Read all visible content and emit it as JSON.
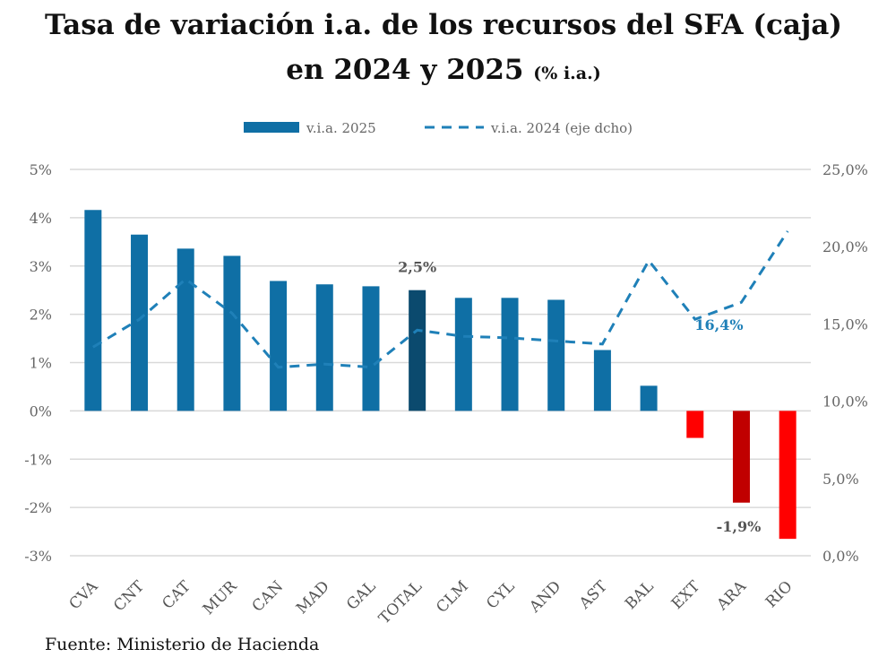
{
  "chart_data": {
    "type": "bar+line",
    "title": "Tasa de variación i.a. de los recursos del SFA (caja)",
    "title_line2": "en 2024 y 2025",
    "subtitle": "(% i.a.)",
    "categories": [
      "CVA",
      "CNT",
      "CAT",
      "MUR",
      "CAN",
      "MAD",
      "GAL",
      "TOTAL",
      "CLM",
      "CYL",
      "AND",
      "AST",
      "BAL",
      "EXT",
      "ARA",
      "RIO"
    ],
    "series": [
      {
        "name": "v.i.a. 2025",
        "type": "bar",
        "axis": "left",
        "values": [
          4.16,
          3.65,
          3.36,
          3.21,
          2.69,
          2.62,
          2.58,
          2.5,
          2.34,
          2.34,
          2.3,
          1.26,
          0.52,
          -0.56,
          -1.9,
          -2.65
        ],
        "colors": [
          "#0f6fa5",
          "#0f6fa5",
          "#0f6fa5",
          "#0f6fa5",
          "#0f6fa5",
          "#0f6fa5",
          "#0f6fa5",
          "#0b4a6e",
          "#0f6fa5",
          "#0f6fa5",
          "#0f6fa5",
          "#0f6fa5",
          "#0f6fa5",
          "#ff0000",
          "#c00000",
          "#ff0000"
        ]
      },
      {
        "name": "v.i.a. 2024 (eje dcho)",
        "type": "line",
        "style": "dashed",
        "axis": "right",
        "color": "#1f80b8",
        "values": [
          13.5,
          15.3,
          17.9,
          15.7,
          12.2,
          12.4,
          12.2,
          14.6,
          14.2,
          14.1,
          13.9,
          13.7,
          19.1,
          15.3,
          16.4,
          21.0
        ]
      }
    ],
    "left_axis": {
      "ylim": [
        -3,
        5
      ],
      "ticks": [
        "-3%",
        "-2%",
        "-1%",
        "0%",
        "1%",
        "2%",
        "3%",
        "4%",
        "5%"
      ]
    },
    "right_axis": {
      "ylim": [
        0,
        25
      ],
      "ticks": [
        "0,0%",
        "5,0%",
        "10,0%",
        "15,0%",
        "20,0%",
        "25,0%"
      ]
    },
    "data_labels": [
      {
        "category": "TOTAL",
        "text": "2,5%",
        "color": "#555555"
      },
      {
        "category": "ARA",
        "text": "-1,9%",
        "color": "#555555"
      },
      {
        "category": "ARA",
        "text": "16,4%",
        "color": "#1f80b8"
      }
    ],
    "grid": true,
    "legend": "top"
  },
  "source": "Fuente: Ministerio de Hacienda"
}
